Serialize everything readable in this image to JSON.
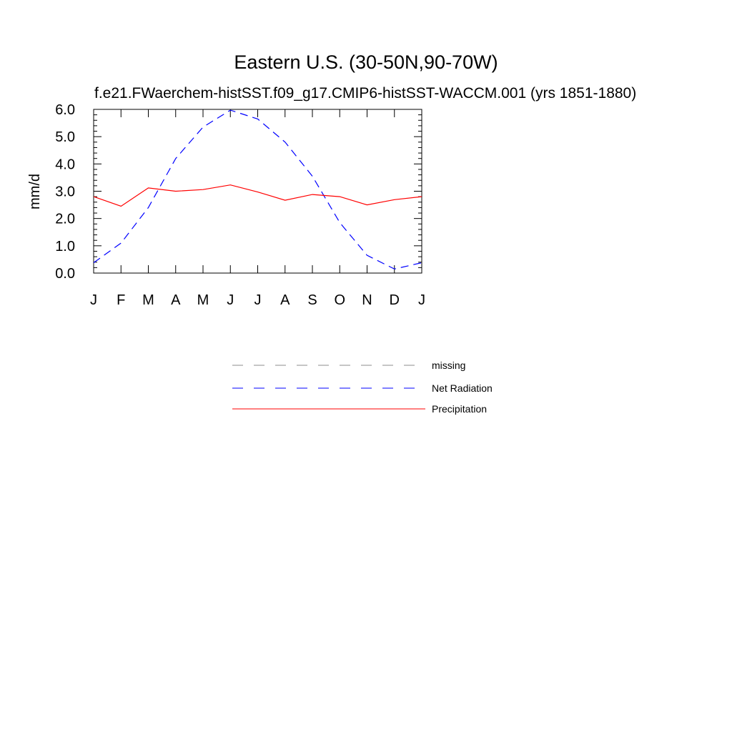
{
  "chart_data": {
    "type": "line",
    "title": "Eastern U.S. (30-50N,90-70W)",
    "subtitle": "f.e21.FWaerchem-histSST.f09_g17.CMIP6-histSST-WACCM.001 (yrs 1851-1880)",
    "xlabel": "",
    "ylabel": "mm/d",
    "ylim": [
      0,
      6
    ],
    "y_ticks": [
      "0.0",
      "1.0",
      "2.0",
      "3.0",
      "4.0",
      "5.0",
      "6.0"
    ],
    "categories": [
      "J",
      "F",
      "M",
      "A",
      "M",
      "J",
      "J",
      "A",
      "S",
      "O",
      "N",
      "D",
      "J"
    ],
    "series": [
      {
        "name": "Net Radiation",
        "color": "#0000ff",
        "style": "dashed",
        "values": [
          0.38,
          1.1,
          2.4,
          4.2,
          5.35,
          5.97,
          5.65,
          4.8,
          3.55,
          1.85,
          0.65,
          0.15,
          0.38
        ]
      },
      {
        "name": "Precipitation",
        "color": "#ff0000",
        "style": "solid",
        "values": [
          2.8,
          2.45,
          3.12,
          3.0,
          3.06,
          3.23,
          2.97,
          2.67,
          2.88,
          2.8,
          2.5,
          2.69,
          2.8
        ]
      }
    ],
    "legend": {
      "placement": "below",
      "entries": [
        {
          "label": "missing",
          "color": "#8c8c8c",
          "style": "dashed"
        },
        {
          "label": "Net Radiation",
          "color": "#0000ff",
          "style": "dashed"
        },
        {
          "label": "Precipitation",
          "color": "#ff0000",
          "style": "solid"
        }
      ]
    },
    "grid": false
  }
}
